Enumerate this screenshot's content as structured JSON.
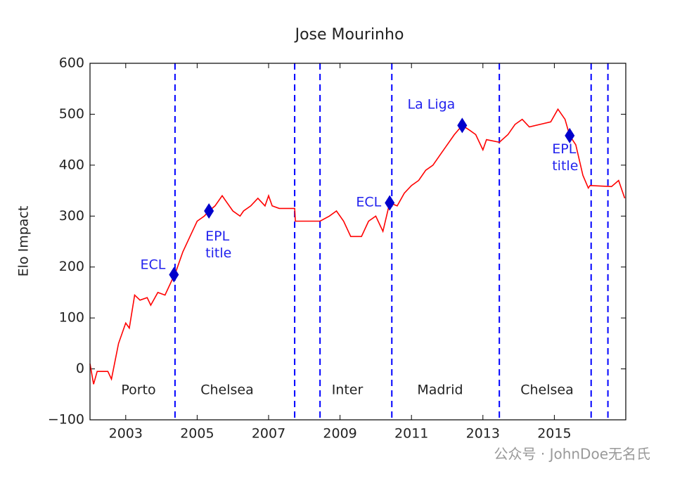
{
  "chart_data": {
    "type": "line",
    "title": "Jose Mourinho",
    "y_label": "Elo Impact",
    "xlim": [
      2002,
      2017
    ],
    "xticks": [
      2003,
      2005,
      2007,
      2009,
      2011,
      2013,
      2015
    ],
    "ylim": [
      -100,
      600
    ],
    "yticks": [
      -100,
      0,
      100,
      200,
      300,
      400,
      500,
      600
    ],
    "yticks_labels": [
      "−100",
      "0",
      "100",
      "200",
      "300",
      "400",
      "500",
      "600"
    ],
    "series": [
      {
        "name": "Elo Impact",
        "color": "#ff0000",
        "x": [
          2002.0,
          2002.1,
          2002.2,
          2002.5,
          2002.6,
          2002.8,
          2003.0,
          2003.1,
          2003.25,
          2003.4,
          2003.6,
          2003.7,
          2003.9,
          2004.1,
          2004.3,
          2004.4,
          2004.6,
          2004.8,
          2005.0,
          2005.2,
          2005.33,
          2005.5,
          2005.7,
          2005.8,
          2006.0,
          2006.2,
          2006.3,
          2006.5,
          2006.7,
          2006.9,
          2007.0,
          2007.1,
          2007.3,
          2007.73,
          2007.75,
          2008.44,
          2008.7,
          2008.9,
          2009.1,
          2009.3,
          2009.6,
          2009.8,
          2010.0,
          2010.2,
          2010.39,
          2010.6,
          2010.8,
          2011.0,
          2011.2,
          2011.4,
          2011.6,
          2011.8,
          2012.0,
          2012.2,
          2012.42,
          2012.6,
          2012.8,
          2013.0,
          2013.1,
          2013.46,
          2013.7,
          2013.9,
          2014.1,
          2014.3,
          2014.6,
          2014.9,
          2015.1,
          2015.3,
          2015.43,
          2015.6,
          2015.8,
          2015.95,
          2016.0,
          2016.6,
          2016.8,
          2016.97
        ],
        "values": [
          10,
          -30,
          -5,
          -5,
          -20,
          50,
          90,
          80,
          145,
          135,
          140,
          125,
          150,
          145,
          175,
          190,
          230,
          260,
          290,
          300,
          310,
          320,
          340,
          330,
          310,
          300,
          310,
          320,
          335,
          320,
          340,
          320,
          315,
          315,
          290,
          290,
          300,
          310,
          290,
          260,
          260,
          290,
          300,
          270,
          326,
          320,
          345,
          360,
          370,
          390,
          400,
          420,
          440,
          460,
          478,
          470,
          460,
          430,
          450,
          445,
          460,
          480,
          490,
          475,
          480,
          485,
          510,
          490,
          458,
          440,
          380,
          355,
          360,
          358,
          370,
          335
        ]
      }
    ],
    "events": [
      {
        "label": [
          "ECL"
        ],
        "x": 2004.35,
        "y": 185
      },
      {
        "label": [
          "EPL",
          "title"
        ],
        "x": 2005.33,
        "y": 310
      },
      {
        "label": [
          "ECL"
        ],
        "x": 2010.39,
        "y": 326
      },
      {
        "label": [
          "La Liga"
        ],
        "x": 2012.42,
        "y": 478
      },
      {
        "label": [
          "EPL",
          "title"
        ],
        "x": 2015.43,
        "y": 458
      }
    ],
    "marker_color": "#0000cc",
    "job_changes": [
      2004.38,
      2007.73,
      2008.44,
      2010.45,
      2013.46,
      2016.03,
      2016.5
    ],
    "change_color": "#0000ff",
    "clubs": [
      "Porto",
      "Chelsea",
      "Inter",
      "Madrid",
      "Chelsea"
    ],
    "watermark": "公众号 · JohnDoe无名氏"
  }
}
